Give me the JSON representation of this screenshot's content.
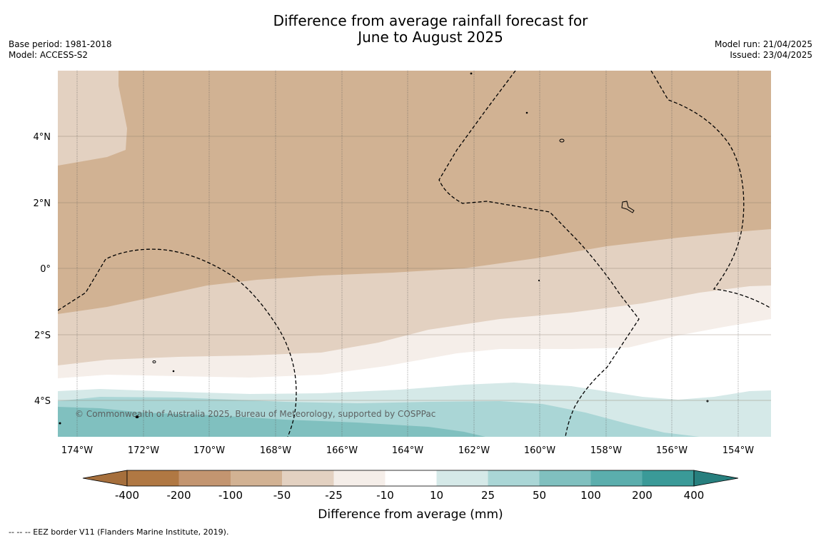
{
  "title_line1": "Difference from average rainfall forecast for",
  "title_line2": "June to August 2025",
  "meta_left": [
    "Base period: 1981-2018",
    "Model: ACCESS-S2"
  ],
  "meta_right": [
    "Model run: 21/04/2025",
    "Issued: 23/04/2025"
  ],
  "copyright": "© Commonwealth of Australia 2025, Bureau of Meteorology, supported by COSPPac",
  "footnote": "--  --  -- EEZ border V11 (Flanders Marine Institute, 2019).",
  "map": {
    "lon_labels": [
      "174°W",
      "172°W",
      "170°W",
      "168°W",
      "166°W",
      "164°W",
      "162°W",
      "160°W",
      "158°W",
      "156°W",
      "154°W"
    ],
    "lat_labels": [
      "4°N",
      "2°N",
      "0°",
      "2°S",
      "4°S"
    ]
  },
  "legend": {
    "title": "Difference from average (mm)",
    "tick_labels": [
      "-400",
      "-200",
      "-100",
      "-50",
      "-25",
      "-10",
      "10",
      "25",
      "50",
      "100",
      "200",
      "400"
    ],
    "bin_colors": [
      "#a66f3c",
      "#b07843",
      "#c39570",
      "#d2b293",
      "#e3d1c1",
      "#f5eee9",
      "#ffffff",
      "#d5e9e8",
      "#aad6d6",
      "#80c0bf",
      "#5baead",
      "#3a9a98",
      "#277f7e"
    ]
  },
  "colors": {
    "land_boundary": "#000000",
    "eez_border": "#000000",
    "gridline": "#555555"
  }
}
